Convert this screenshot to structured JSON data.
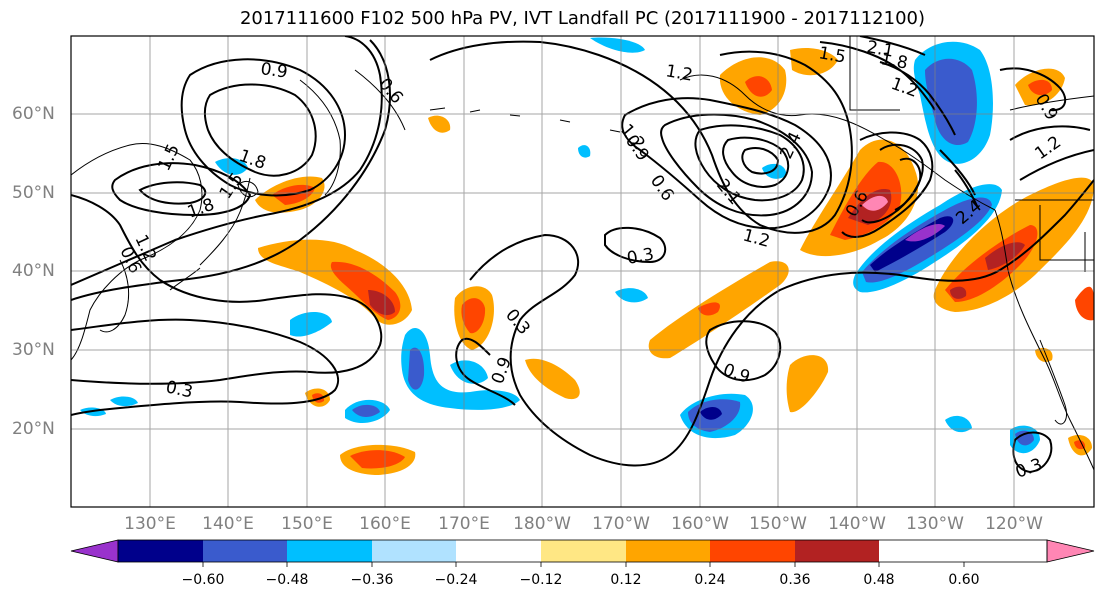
{
  "title": "2017111600 F102 500 hPa PV, IVT Landfall PC (2017111900 - 2017112100)",
  "lat_labels": [
    "60°N",
    "50°N",
    "40°N",
    "30°N",
    "20°N"
  ],
  "lon_labels": [
    "130°E",
    "140°E",
    "150°E",
    "160°E",
    "170°E",
    "180°W",
    "170°W",
    "160°W",
    "150°W",
    "140°W",
    "130°W",
    "120°W"
  ],
  "contour_labels": [
    "0.9",
    "0.6",
    "1.5",
    "1.8",
    "1.2",
    "0.6",
    "1.5",
    "1.8",
    "0.3",
    "0.3",
    "0.3",
    "0.9",
    "1.2",
    "1.2",
    "0.9",
    "0.6",
    "2.1",
    "2.4",
    "1.2",
    "0.6",
    "0.9",
    "1.5",
    "2.1",
    "1.8",
    "1.2",
    "2.4",
    "1.2",
    "0.3",
    "0.9"
  ],
  "colorbar": {
    "tick_labels": [
      "−0.60",
      "−0.48",
      "−0.36",
      "−0.24",
      "−0.12",
      "0.12",
      "0.24",
      "0.36",
      "0.48",
      "0.60"
    ],
    "colors": [
      "#9932cc",
      "#00008b",
      "#3a5bcd",
      "#00bfff",
      "#b0e2ff",
      "#ffffff",
      "#ffe784",
      "#ffa500",
      "#ff4500",
      "#b22222",
      "#ff86b4"
    ]
  }
}
